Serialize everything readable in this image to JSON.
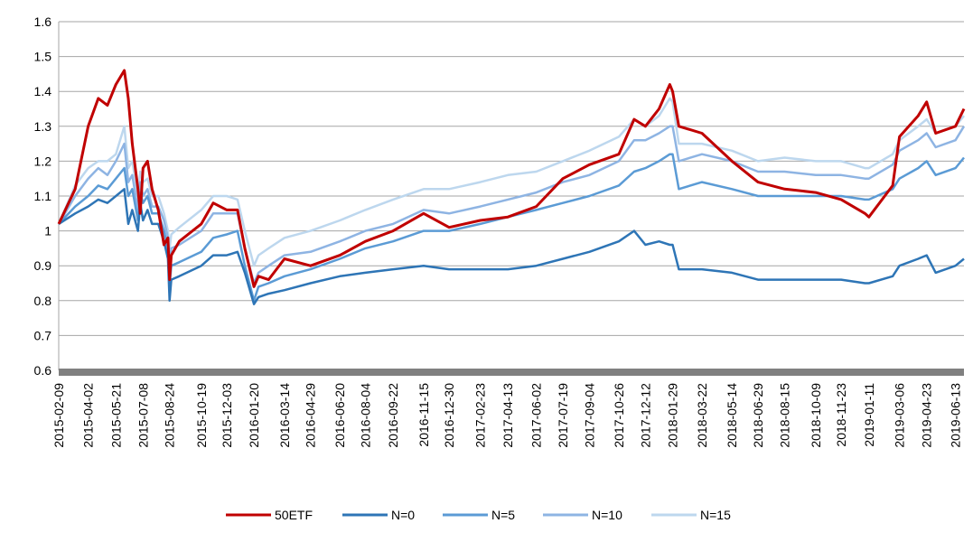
{
  "chart_data": {
    "type": "line",
    "title": "",
    "xlabel": "",
    "ylabel": "",
    "ylim": [
      0.6,
      1.6
    ],
    "yticks": [
      0.6,
      0.7,
      0.8,
      0.9,
      1,
      1.1,
      1.2,
      1.3,
      1.4,
      1.5,
      1.6
    ],
    "ytick_labels": [
      "0.6",
      "0.7",
      "0.8",
      "0.9",
      "1",
      "1.1",
      "1.2",
      "1.3",
      "1.4",
      "1.5",
      "1.6"
    ],
    "grid": "horizontal",
    "legend_position": "bottom",
    "x_tick_labels": [
      "2015-02-09",
      "2015-04-02",
      "2015-05-21",
      "2015-07-08",
      "2015-08-24",
      "2015-10-19",
      "2015-12-03",
      "2016-01-20",
      "2016-03-14",
      "2016-04-29",
      "2016-06-20",
      "2016-08-04",
      "2016-09-22",
      "2016-11-15",
      "2016-12-30",
      "2017-02-23",
      "2017-04-13",
      "2017-06-02",
      "2017-07-19",
      "2017-09-04",
      "2017-10-26",
      "2017-12-12",
      "2018-01-29",
      "2018-03-22",
      "2018-05-14",
      "2018-06-29",
      "2018-08-15",
      "2018-10-09",
      "2018-11-23",
      "2019-01-11",
      "2019-03-06",
      "2019-04-23",
      "2019-06-13"
    ],
    "x": [
      "2015-02-09",
      "2015-03-10",
      "2015-04-02",
      "2015-04-20",
      "2015-05-06",
      "2015-05-21",
      "2015-06-05",
      "2015-06-12",
      "2015-06-19",
      "2015-06-29",
      "2015-07-03",
      "2015-07-08",
      "2015-07-16",
      "2015-07-24",
      "2015-08-04",
      "2015-08-14",
      "2015-08-21",
      "2015-08-24",
      "2015-08-27",
      "2015-09-10",
      "2015-10-19",
      "2015-11-09",
      "2015-12-03",
      "2015-12-22",
      "2016-01-04",
      "2016-01-20",
      "2016-01-28",
      "2016-02-15",
      "2016-03-14",
      "2016-04-29",
      "2016-06-20",
      "2016-08-04",
      "2016-09-22",
      "2016-11-15",
      "2016-12-30",
      "2017-02-23",
      "2017-04-13",
      "2017-06-02",
      "2017-07-19",
      "2017-09-04",
      "2017-10-26",
      "2017-11-22",
      "2017-12-12",
      "2018-01-05",
      "2018-01-24",
      "2018-01-29",
      "2018-02-09",
      "2018-03-22",
      "2018-05-14",
      "2018-06-29",
      "2018-08-15",
      "2018-10-09",
      "2018-11-23",
      "2019-01-04",
      "2019-01-11",
      "2019-02-22",
      "2019-03-06",
      "2019-04-08",
      "2019-04-23",
      "2019-05-09",
      "2019-06-13",
      "2019-06-28"
    ],
    "series": [
      {
        "name": "50ETF",
        "color": "#C00000",
        "width": 3,
        "values": [
          1.02,
          1.12,
          1.3,
          1.38,
          1.36,
          1.42,
          1.46,
          1.38,
          1.25,
          1.12,
          1.05,
          1.18,
          1.2,
          1.12,
          1.06,
          0.96,
          0.98,
          0.86,
          0.93,
          0.97,
          1.02,
          1.08,
          1.06,
          1.06,
          0.95,
          0.84,
          0.87,
          0.86,
          0.92,
          0.9,
          0.93,
          0.97,
          1.0,
          1.05,
          1.01,
          1.03,
          1.04,
          1.07,
          1.15,
          1.19,
          1.22,
          1.32,
          1.3,
          1.35,
          1.42,
          1.4,
          1.3,
          1.28,
          1.2,
          1.14,
          1.12,
          1.11,
          1.09,
          1.05,
          1.04,
          1.13,
          1.27,
          1.33,
          1.37,
          1.28,
          1.3,
          1.35
        ]
      },
      {
        "name": "N=0",
        "color": "#2E75B6",
        "width": 2.5,
        "values": [
          1.02,
          1.05,
          1.07,
          1.09,
          1.08,
          1.1,
          1.12,
          1.02,
          1.06,
          1.0,
          1.08,
          1.03,
          1.06,
          1.02,
          1.02,
          0.97,
          0.92,
          0.8,
          0.86,
          0.87,
          0.9,
          0.93,
          0.93,
          0.94,
          0.88,
          0.79,
          0.81,
          0.82,
          0.83,
          0.85,
          0.87,
          0.88,
          0.89,
          0.9,
          0.89,
          0.89,
          0.89,
          0.9,
          0.92,
          0.94,
          0.97,
          1.0,
          0.96,
          0.97,
          0.96,
          0.96,
          0.89,
          0.89,
          0.88,
          0.86,
          0.86,
          0.86,
          0.86,
          0.85,
          0.85,
          0.87,
          0.9,
          0.92,
          0.93,
          0.88,
          0.9,
          0.92
        ]
      },
      {
        "name": "N=5",
        "color": "#5B9BD5",
        "width": 2.5,
        "values": [
          1.02,
          1.07,
          1.1,
          1.13,
          1.12,
          1.15,
          1.18,
          1.1,
          1.12,
          1.03,
          1.11,
          1.08,
          1.1,
          1.05,
          1.05,
          1.0,
          0.95,
          0.84,
          0.9,
          0.91,
          0.94,
          0.98,
          0.99,
          1.0,
          0.9,
          0.8,
          0.84,
          0.85,
          0.87,
          0.89,
          0.92,
          0.95,
          0.97,
          1.0,
          1.0,
          1.02,
          1.04,
          1.06,
          1.08,
          1.1,
          1.13,
          1.17,
          1.18,
          1.2,
          1.22,
          1.22,
          1.12,
          1.14,
          1.12,
          1.1,
          1.1,
          1.1,
          1.1,
          1.09,
          1.09,
          1.12,
          1.15,
          1.18,
          1.2,
          1.16,
          1.18,
          1.21
        ]
      },
      {
        "name": "N=10",
        "color": "#8EB4E3",
        "width": 2.5,
        "values": [
          1.02,
          1.1,
          1.15,
          1.18,
          1.16,
          1.2,
          1.25,
          1.14,
          1.16,
          1.06,
          1.14,
          1.1,
          1.12,
          1.07,
          1.07,
          1.03,
          0.98,
          0.9,
          0.95,
          0.96,
          1.0,
          1.05,
          1.05,
          1.05,
          0.95,
          0.85,
          0.88,
          0.9,
          0.93,
          0.94,
          0.97,
          1.0,
          1.02,
          1.06,
          1.05,
          1.07,
          1.09,
          1.11,
          1.14,
          1.16,
          1.2,
          1.26,
          1.26,
          1.28,
          1.3,
          1.3,
          1.2,
          1.22,
          1.2,
          1.17,
          1.17,
          1.16,
          1.16,
          1.15,
          1.15,
          1.19,
          1.23,
          1.26,
          1.28,
          1.24,
          1.26,
          1.3
        ]
      },
      {
        "name": "N=15",
        "color": "#BDD7EE",
        "width": 2.5,
        "values": [
          1.02,
          1.13,
          1.18,
          1.2,
          1.2,
          1.22,
          1.3,
          1.18,
          1.2,
          1.1,
          1.17,
          1.14,
          1.15,
          1.1,
          1.1,
          1.05,
          1.0,
          0.95,
          0.99,
          1.01,
          1.06,
          1.1,
          1.1,
          1.09,
          1.0,
          0.9,
          0.93,
          0.95,
          0.98,
          1.0,
          1.03,
          1.06,
          1.09,
          1.12,
          1.12,
          1.14,
          1.16,
          1.17,
          1.2,
          1.23,
          1.27,
          1.32,
          1.3,
          1.33,
          1.38,
          1.37,
          1.25,
          1.25,
          1.23,
          1.2,
          1.21,
          1.2,
          1.2,
          1.18,
          1.18,
          1.22,
          1.26,
          1.3,
          1.32,
          1.28,
          1.3,
          1.33
        ]
      }
    ]
  }
}
